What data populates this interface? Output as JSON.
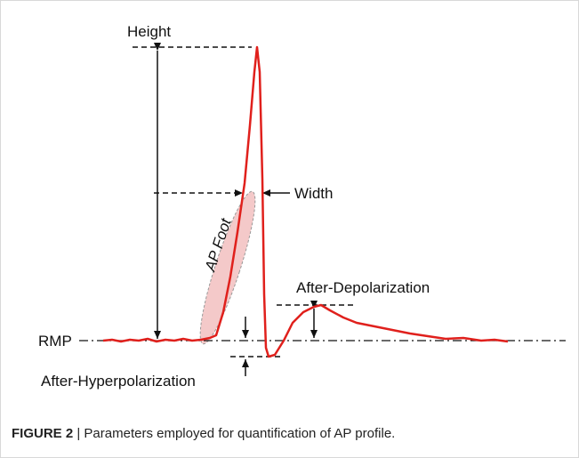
{
  "labels": {
    "height": "Height",
    "width": "Width",
    "ap_foot": "AP Foot",
    "adp": "After-Depolarization",
    "rmp": "RMP",
    "ahp": "After-Hyperpolarization"
  },
  "caption": {
    "label": "FIGURE 2",
    "text": " | Parameters employed for quantification of AP profile."
  }
}
